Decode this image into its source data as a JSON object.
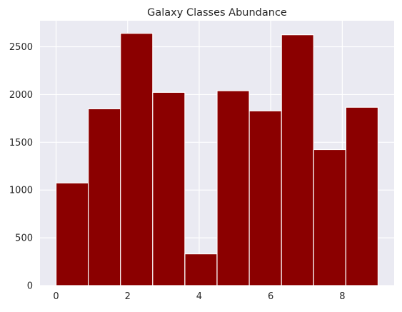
{
  "chart_data": {
    "type": "bar",
    "title": "Galaxy Classes Abundance",
    "xlabel": "",
    "ylabel": "",
    "bin_edges": [
      0,
      0.9,
      1.8,
      2.7,
      3.6,
      4.5,
      5.4,
      6.3,
      7.2,
      8.1,
      9
    ],
    "values": [
      1075,
      1851,
      2641,
      2023,
      332,
      2040,
      1829,
      2626,
      1424,
      1867
    ],
    "xlim": [
      -0.45,
      9.45
    ],
    "ylim": [
      0,
      2773
    ],
    "xticks": [
      0,
      2,
      4,
      6,
      8
    ],
    "yticks": [
      0,
      500,
      1000,
      1500,
      2000,
      2500
    ],
    "grid": true,
    "colors": {
      "bar": "#8b0000",
      "bar_edge": "#ffffff",
      "axes_bg": "#eaeaf2",
      "grid": "#ffffff",
      "text": "#262626"
    }
  }
}
